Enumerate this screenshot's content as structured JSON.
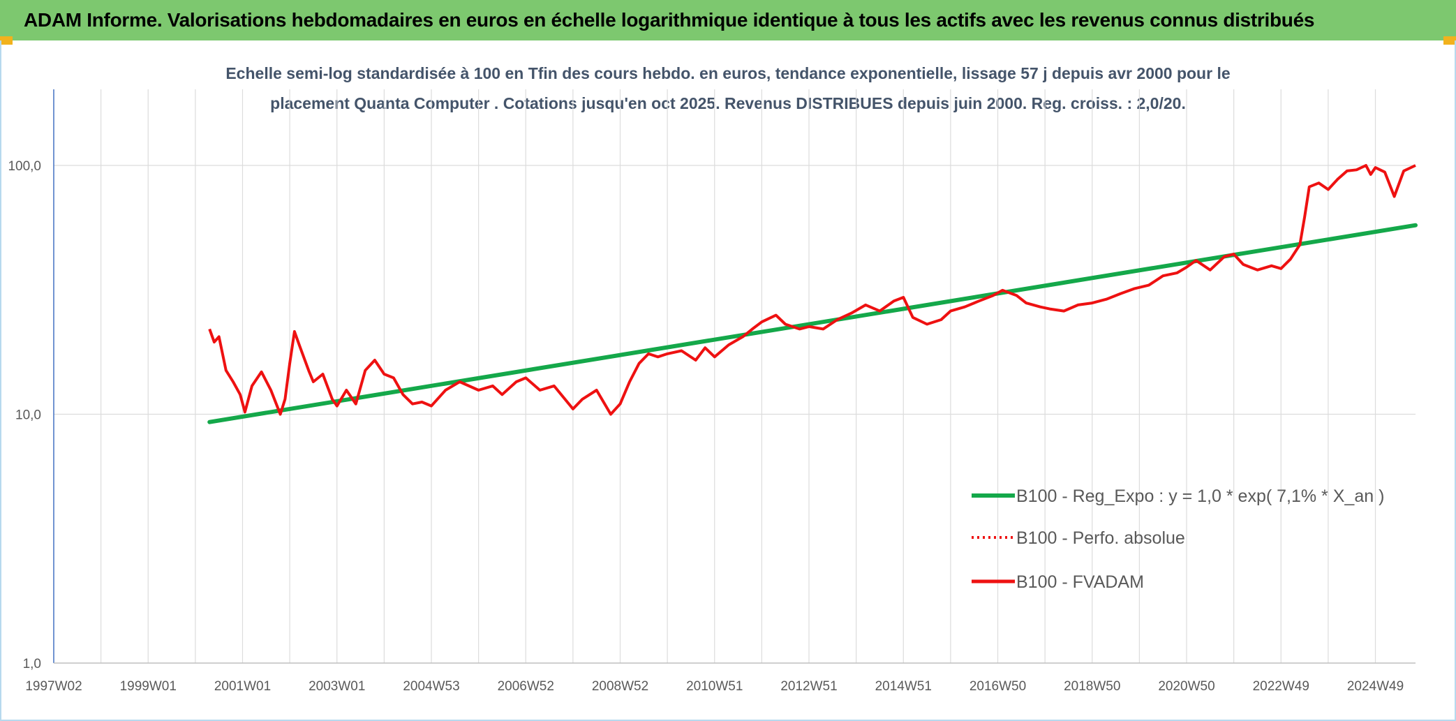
{
  "banner": {
    "title": "ADAM Informe. Valorisations hebdomadaires en euros en échelle logarithmique identique à tous les actifs avec les revenus connus distribués"
  },
  "colors": {
    "banner_bg": "#7dc86f",
    "corner": "#f2b21d",
    "trend": "#14a84a",
    "fvadam": "#ee1111",
    "perfo": "#ee1111",
    "grid": "#dcdcdc",
    "axis_text": "#595959",
    "subtitle_text": "#44546a"
  },
  "chart_data": {
    "type": "line",
    "title_line1": "Echelle semi-log standardisée à 100 en Tfin des cours hebdo. en euros, tendance exponentielle, lissage 57 j depuis avr 2000 pour le",
    "title_line2": "placement Quanta Computer . Cotations jusqu'en oct 2025. Revenus DISTRIBUES depuis juin 2000. Reg. croiss. : 2,0/20.",
    "y_scale": "log",
    "ylim": [
      1,
      100
    ],
    "y_ticks": [
      {
        "value": 1,
        "label": "1,0"
      },
      {
        "value": 10,
        "label": "10,0"
      },
      {
        "value": 100,
        "label": "100,0"
      }
    ],
    "xlim": [
      1997.0,
      2025.85
    ],
    "x_ticks": [
      {
        "value": 1997.0,
        "label": "1997W02"
      },
      {
        "value": 1999.0,
        "label": "1999W01"
      },
      {
        "value": 2001.0,
        "label": "2001W01"
      },
      {
        "value": 2003.0,
        "label": "2003W01"
      },
      {
        "value": 2005.0,
        "label": "2004W53"
      },
      {
        "value": 2007.0,
        "label": "2006W52"
      },
      {
        "value": 2009.0,
        "label": "2008W52"
      },
      {
        "value": 2011.0,
        "label": "2010W51"
      },
      {
        "value": 2013.0,
        "label": "2012W51"
      },
      {
        "value": 2015.0,
        "label": "2014W51"
      },
      {
        "value": 2017.0,
        "label": "2016W50"
      },
      {
        "value": 2019.0,
        "label": "2018W50"
      },
      {
        "value": 2021.0,
        "label": "2020W50"
      },
      {
        "value": 2023.0,
        "label": "2022W49"
      },
      {
        "value": 2025.0,
        "label": "2024W49"
      }
    ],
    "grid": "vertical and horizontal",
    "legend_position": "right",
    "series": [
      {
        "name": "B100 - Reg_Expo : y = 1,0 * exp( 7,1% *  X_an )",
        "style": "solid-thick",
        "color": "#14a84a",
        "x": [
          2000.3,
          2025.85
        ],
        "y": [
          9.3,
          57.5
        ]
      },
      {
        "name": "B100 - Perfo. absolue",
        "style": "dotted",
        "color": "#ee1111",
        "x": [],
        "y": []
      },
      {
        "name": "B100 - FVADAM",
        "style": "solid",
        "color": "#ee1111",
        "x": [
          2000.3,
          2000.4,
          2000.5,
          2000.65,
          2000.8,
          2000.95,
          2001.05,
          2001.2,
          2001.4,
          2001.6,
          2001.8,
          2001.9,
          2002.0,
          2002.1,
          2002.2,
          2002.4,
          2002.5,
          2002.7,
          2002.9,
          2003.0,
          2003.2,
          2003.4,
          2003.6,
          2003.8,
          2004.0,
          2004.2,
          2004.4,
          2004.6,
          2004.8,
          2005.0,
          2005.3,
          2005.6,
          2006.0,
          2006.3,
          2006.5,
          2006.8,
          2007.0,
          2007.3,
          2007.6,
          2008.0,
          2008.2,
          2008.5,
          2008.8,
          2009.0,
          2009.2,
          2009.4,
          2009.6,
          2009.8,
          2010.0,
          2010.3,
          2010.6,
          2010.8,
          2011.0,
          2011.3,
          2011.6,
          2011.8,
          2012.0,
          2012.3,
          2012.5,
          2012.8,
          2013.0,
          2013.3,
          2013.6,
          2013.9,
          2014.2,
          2014.5,
          2014.8,
          2015.0,
          2015.2,
          2015.5,
          2015.8,
          2016.0,
          2016.3,
          2016.6,
          2016.9,
          2017.1,
          2017.4,
          2017.6,
          2017.9,
          2018.1,
          2018.4,
          2018.7,
          2019.0,
          2019.3,
          2019.6,
          2019.9,
          2020.2,
          2020.5,
          2020.8,
          2021.0,
          2021.2,
          2021.5,
          2021.8,
          2022.0,
          2022.2,
          2022.5,
          2022.8,
          2023.0,
          2023.2,
          2023.4,
          2023.5,
          2023.6,
          2023.8,
          2024.0,
          2024.2,
          2024.4,
          2024.6,
          2024.8,
          2024.9,
          2025.0,
          2025.2,
          2025.4,
          2025.6,
          2025.85
        ],
        "y": [
          22.0,
          19.5,
          20.5,
          15.0,
          13.5,
          12.0,
          10.2,
          13.0,
          14.8,
          12.5,
          10.0,
          11.5,
          16.0,
          21.5,
          19.0,
          15.0,
          13.5,
          14.5,
          11.5,
          10.8,
          12.5,
          11.0,
          15.0,
          16.5,
          14.5,
          14.0,
          12.0,
          11.0,
          11.2,
          10.8,
          12.5,
          13.5,
          12.5,
          13.0,
          12.0,
          13.5,
          14.0,
          12.5,
          13.0,
          10.5,
          11.5,
          12.5,
          10.0,
          11.0,
          13.5,
          16.0,
          17.5,
          17.0,
          17.5,
          18.0,
          16.5,
          18.5,
          17.0,
          19.0,
          20.5,
          22.0,
          23.5,
          25.0,
          23.0,
          22.0,
          22.5,
          22.0,
          24.0,
          25.5,
          27.5,
          26.0,
          28.5,
          29.5,
          24.5,
          23.0,
          24.0,
          26.0,
          27.0,
          28.5,
          30.0,
          31.5,
          30.0,
          28.0,
          27.0,
          26.5,
          26.0,
          27.5,
          28.0,
          29.0,
          30.5,
          32.0,
          33.0,
          36.0,
          37.0,
          39.0,
          41.5,
          38.0,
          43.0,
          44.0,
          40.0,
          38.0,
          39.5,
          38.5,
          42.0,
          48.0,
          62.0,
          82.0,
          85.0,
          80.0,
          88.0,
          95.0,
          96.0,
          100.0,
          92.0,
          98.0,
          94.0,
          75.0,
          95.0,
          100.0
        ]
      }
    ]
  }
}
